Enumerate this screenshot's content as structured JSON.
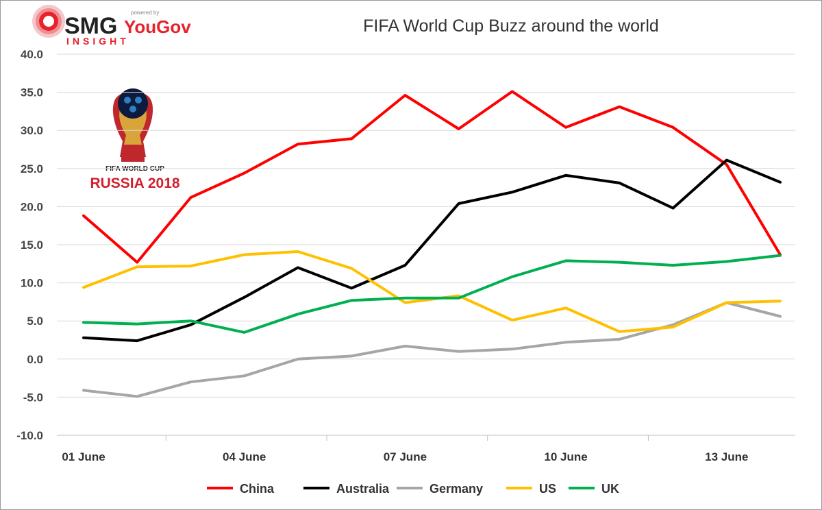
{
  "brand": {
    "smg": "SMG",
    "yougov": "YouGov",
    "powered": "powered by",
    "insight": "INSIGHT"
  },
  "emblem": {
    "line1": "FIFA WORLD CUP",
    "line2": "RUSSIA 2018"
  },
  "chart_data": {
    "type": "line",
    "title": "FIFA World Cup Buzz around the world",
    "xlabel": "",
    "ylabel": "",
    "ylim": [
      -10,
      40
    ],
    "yticks": [
      -10,
      -5,
      0,
      5,
      10,
      15,
      20,
      25,
      30,
      35,
      40
    ],
    "y_tick_labels": [
      "-10.0",
      "-5.0",
      "0.0",
      "5.0",
      "10.0",
      "15.0",
      "20.0",
      "25.0",
      "30.0",
      "35.0",
      "40.0"
    ],
    "x": [
      "01 June",
      "02 June",
      "03 June",
      "04 June",
      "05 June",
      "06 June",
      "07 June",
      "08 June",
      "09 June",
      "10 June",
      "11 June",
      "12 June",
      "13 June",
      "14 June"
    ],
    "x_tick_labels": [
      "01 June",
      "04 June",
      "07 June",
      "10 June",
      "13 June"
    ],
    "grid": "horizontal",
    "legend_position": "bottom",
    "series": [
      {
        "name": "China",
        "color": "#ff0000",
        "values": [
          18.8,
          12.7,
          21.2,
          24.4,
          28.2,
          28.9,
          34.6,
          30.2,
          35.1,
          30.4,
          33.1,
          30.4,
          25.5,
          13.7
        ]
      },
      {
        "name": "Australia",
        "color": "#000000",
        "values": [
          2.8,
          2.4,
          4.5,
          8.1,
          12.0,
          9.3,
          12.3,
          20.4,
          21.9,
          24.1,
          23.1,
          19.8,
          26.1,
          23.2
        ]
      },
      {
        "name": "Germany",
        "color": "#a6a6a6",
        "values": [
          -4.1,
          -4.9,
          -3.0,
          -2.2,
          0.0,
          0.4,
          1.7,
          1.0,
          1.3,
          2.2,
          2.6,
          4.5,
          7.4,
          5.6
        ]
      },
      {
        "name": "US",
        "color": "#ffc000",
        "values": [
          9.4,
          12.1,
          12.2,
          13.7,
          14.1,
          11.9,
          7.4,
          8.3,
          5.1,
          6.7,
          3.6,
          4.2,
          7.4,
          7.6
        ]
      },
      {
        "name": "UK",
        "color": "#00b050",
        "values": [
          4.8,
          4.6,
          5.0,
          3.5,
          5.9,
          7.7,
          8.0,
          8.0,
          10.8,
          12.9,
          12.7,
          12.3,
          12.8,
          13.6
        ]
      }
    ]
  }
}
